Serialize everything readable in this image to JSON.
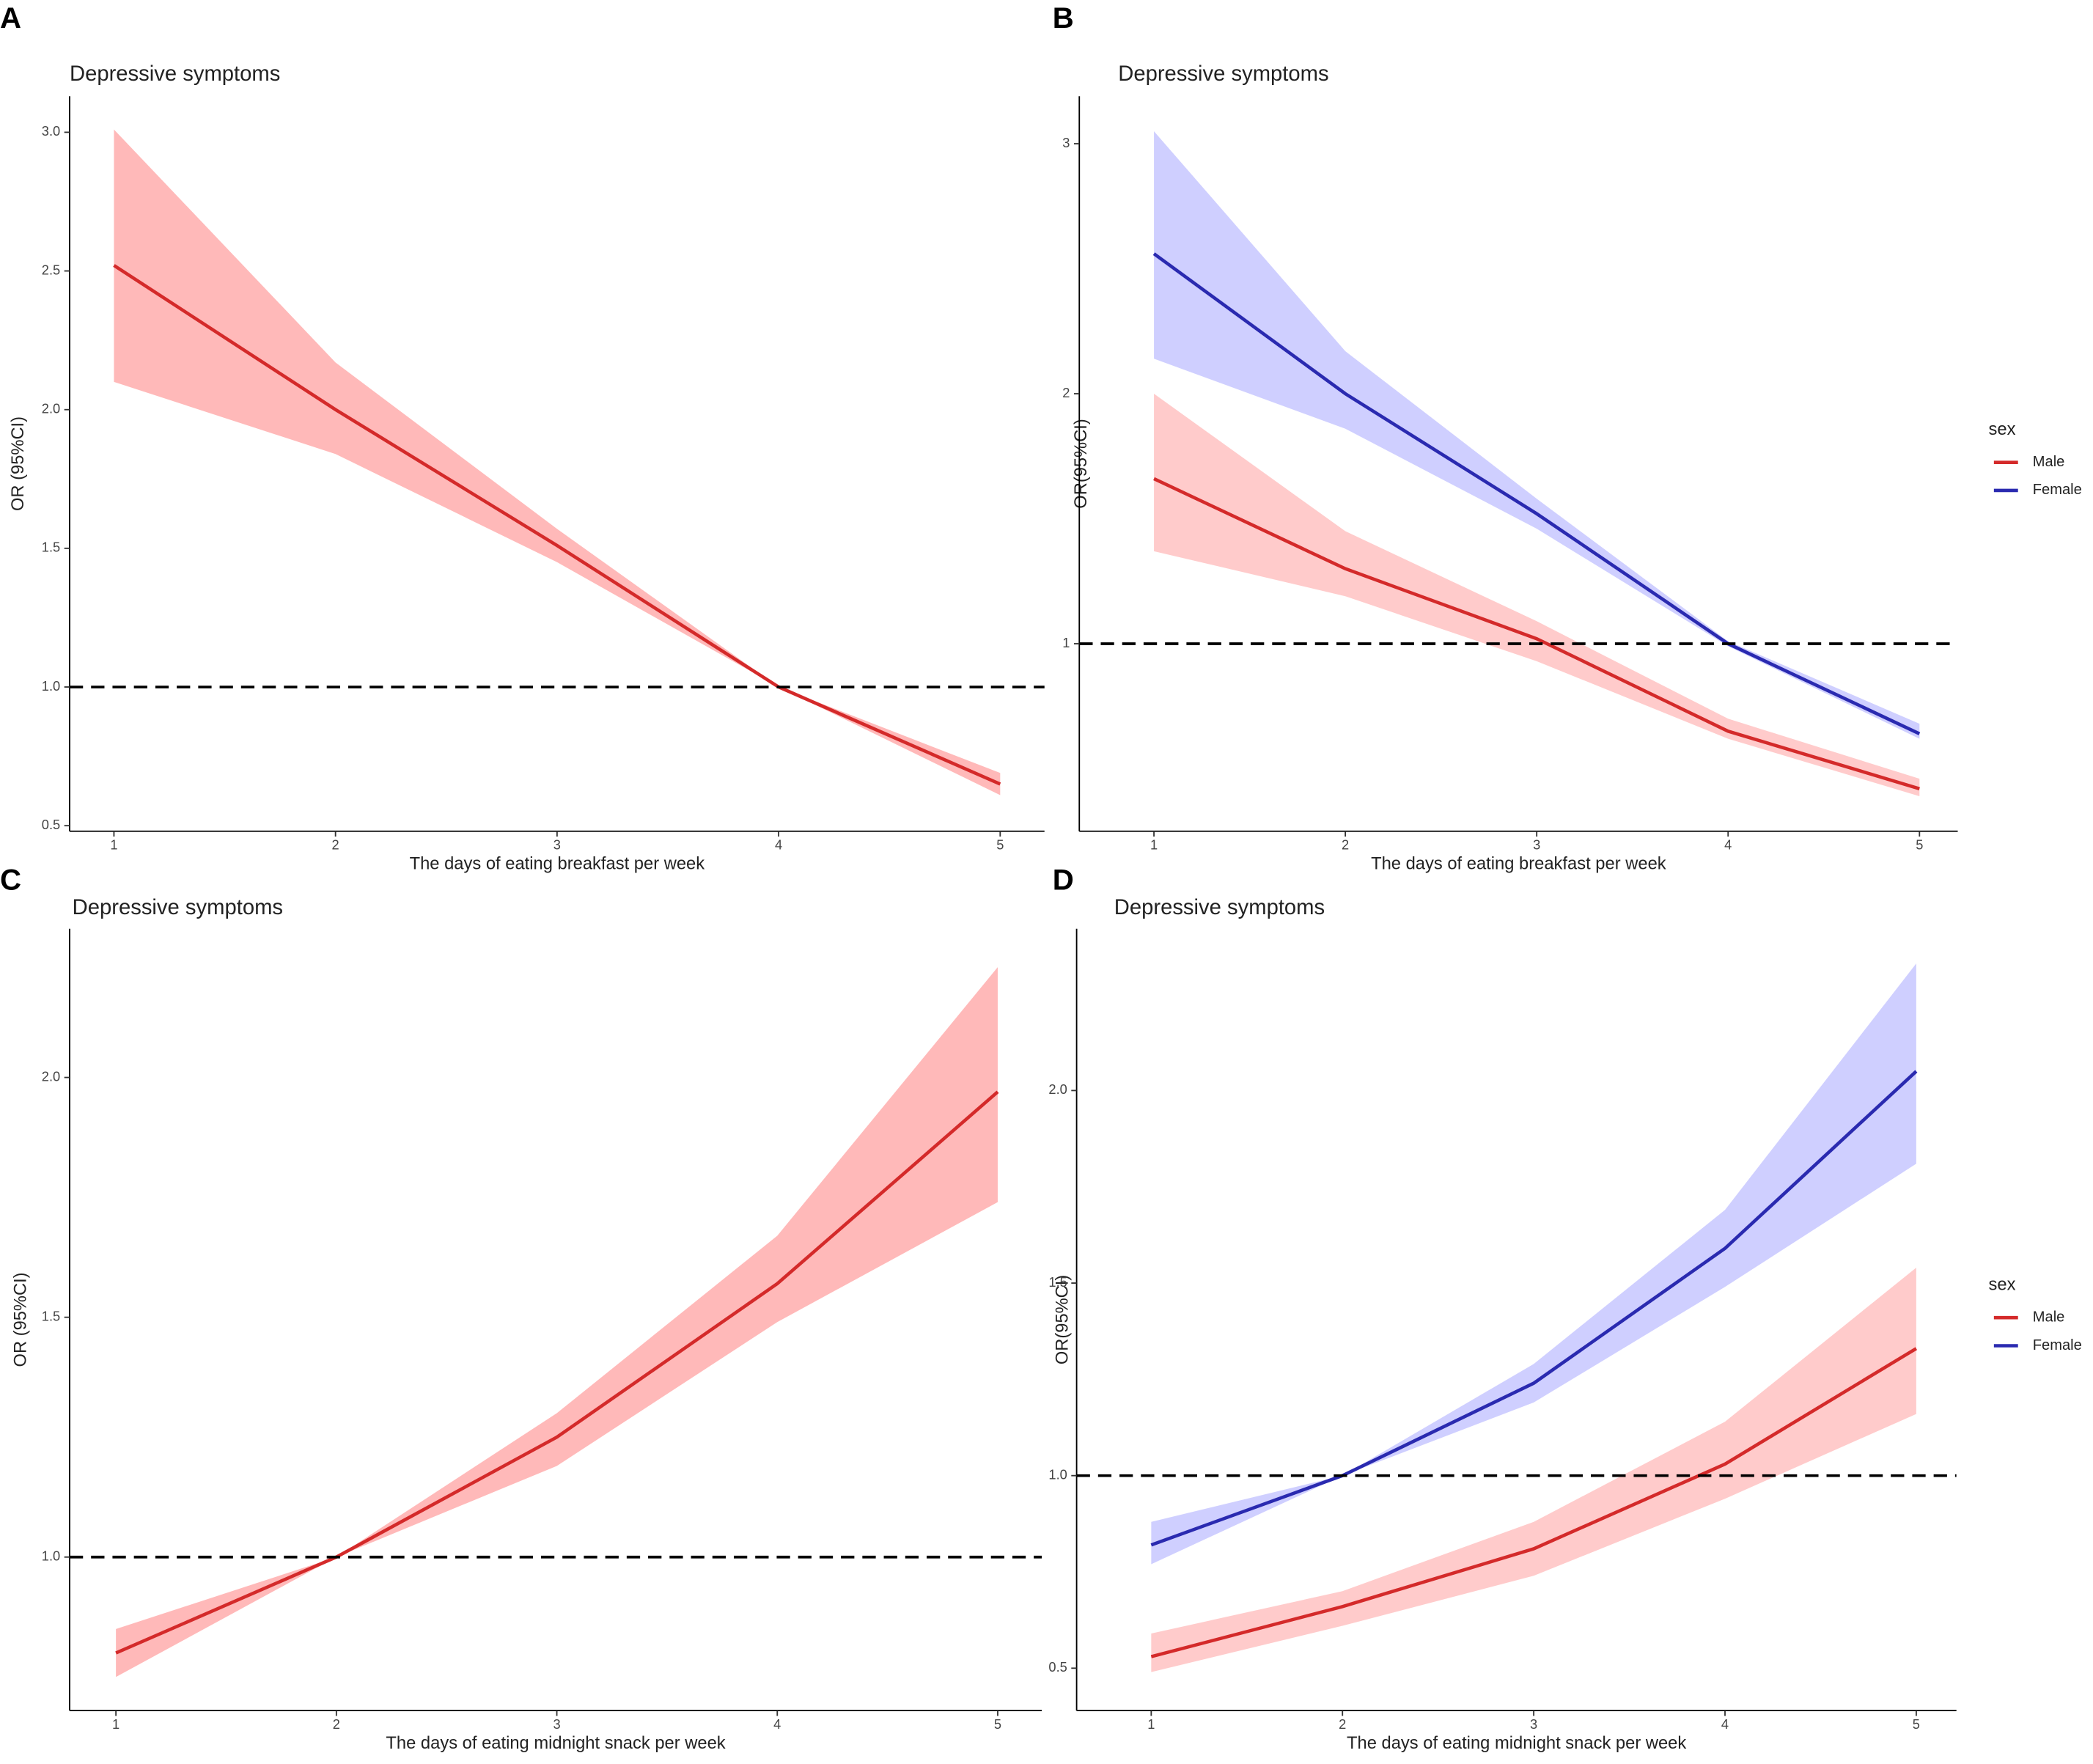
{
  "chart_data": [
    {
      "type": "line",
      "panel": "A",
      "title": "Depressive symptoms",
      "xlabel": "The days of eating breakfast per week",
      "ylabel": "OR (95%CI)",
      "x": [
        1,
        2,
        3,
        4,
        5
      ],
      "xlim": [
        0.8,
        5.2
      ],
      "xticks": [
        1,
        2,
        3,
        4,
        5
      ],
      "ylim": [
        0.48,
        3.13
      ],
      "yticks": [
        {
          "value": 0.5,
          "label": "0.5"
        },
        {
          "value": 1,
          "label": "1.0"
        },
        {
          "value": 1.5,
          "label": "1.5"
        },
        {
          "value": 2,
          "label": "2.0"
        },
        {
          "value": 2.5,
          "label": "2.5"
        },
        {
          "value": 3,
          "label": "3.0"
        }
      ],
      "reference_line": 1,
      "series": [
        {
          "color": "#d42a2a",
          "band_color": "#ff8080",
          "values": [
            2.52,
            2.0,
            1.51,
            1.0,
            0.65
          ],
          "lower": [
            2.1,
            1.84,
            1.45,
            1.0,
            0.61
          ],
          "upper": [
            3.01,
            2.17,
            1.57,
            1.0,
            0.69
          ]
        }
      ]
    },
    {
      "type": "line",
      "panel": "B",
      "title": "Depressive symptoms",
      "xlabel": "The days of eating breakfast per week",
      "ylabel": "OR(95%CI)",
      "x": [
        1,
        2,
        3,
        4,
        5
      ],
      "xlim": [
        0.61,
        5.2
      ],
      "xticks": [
        1,
        2,
        3,
        4,
        5
      ],
      "ylim": [
        0.25,
        3.19
      ],
      "yticks": [
        1,
        2,
        3
      ],
      "reference_line": 1,
      "legend_title": "sex",
      "series": [
        {
          "name": "Male",
          "color": "#d42a2a",
          "band_color": "#ffa0a0",
          "values": [
            1.66,
            1.3,
            1.02,
            0.65,
            0.42
          ],
          "lower": [
            1.37,
            1.19,
            0.93,
            0.62,
            0.39
          ],
          "upper": [
            2.0,
            1.45,
            1.09,
            0.7,
            0.46
          ]
        },
        {
          "name": "Female",
          "color": "#2a2ab0",
          "band_color": "#a8a8ff",
          "values": [
            2.56,
            2.0,
            1.52,
            1.0,
            0.64
          ],
          "lower": [
            2.14,
            1.86,
            1.46,
            0.99,
            0.62
          ],
          "upper": [
            3.05,
            2.17,
            1.58,
            1.01,
            0.68
          ]
        }
      ]
    },
    {
      "type": "line",
      "panel": "C",
      "title": "Depressive symptoms",
      "xlabel": "The days of eating midnight snack per week",
      "ylabel": "OR (95%CI)",
      "x": [
        1,
        2,
        3,
        4,
        5
      ],
      "xlim": [
        0.79,
        5.2
      ],
      "xticks": [
        1,
        2,
        3,
        4,
        5
      ],
      "ylim": [
        0.68,
        2.31
      ],
      "yticks": [
        {
          "value": 1,
          "label": "1.0"
        },
        {
          "value": 1.5,
          "label": "1.5"
        },
        {
          "value": 2,
          "label": "2.0"
        }
      ],
      "reference_line": 1,
      "series": [
        {
          "color": "#d42a2a",
          "band_color": "#ff8080",
          "values": [
            0.8,
            1.0,
            1.25,
            1.57,
            1.97
          ],
          "lower": [
            0.75,
            1.0,
            1.19,
            1.49,
            1.74
          ],
          "upper": [
            0.85,
            1.0,
            1.3,
            1.67,
            2.23
          ]
        }
      ]
    },
    {
      "type": "line",
      "panel": "D",
      "title": "Depressive symptoms",
      "xlabel": "The days of eating midnight snack per week",
      "ylabel": "OR(95%CI)",
      "x": [
        1,
        2,
        3,
        4,
        5
      ],
      "xlim": [
        0.61,
        5.21
      ],
      "xticks": [
        1,
        2,
        3,
        4,
        5
      ],
      "ylim": [
        0.39,
        2.42
      ],
      "yticks": [
        {
          "value": 0.5,
          "label": "0.5"
        },
        {
          "value": 1,
          "label": "1.0"
        },
        {
          "value": 1.5,
          "label": "1.5"
        },
        {
          "value": 2,
          "label": "2.0"
        }
      ],
      "reference_line": 1,
      "legend_title": "sex",
      "series": [
        {
          "name": "Male",
          "color": "#d42a2a",
          "band_color": "#ffa0a0",
          "values": [
            0.53,
            0.66,
            0.81,
            1.03,
            1.33
          ],
          "lower": [
            0.49,
            0.61,
            0.74,
            0.94,
            1.16
          ],
          "upper": [
            0.59,
            0.7,
            0.88,
            1.14,
            1.54
          ]
        },
        {
          "name": "Female",
          "color": "#2a2ab0",
          "band_color": "#a8a8ff",
          "values": [
            0.82,
            1.0,
            1.24,
            1.59,
            2.05
          ],
          "lower": [
            0.77,
            1.0,
            1.19,
            1.49,
            1.81
          ],
          "upper": [
            0.88,
            1.0,
            1.29,
            1.69,
            2.33
          ]
        }
      ]
    }
  ]
}
